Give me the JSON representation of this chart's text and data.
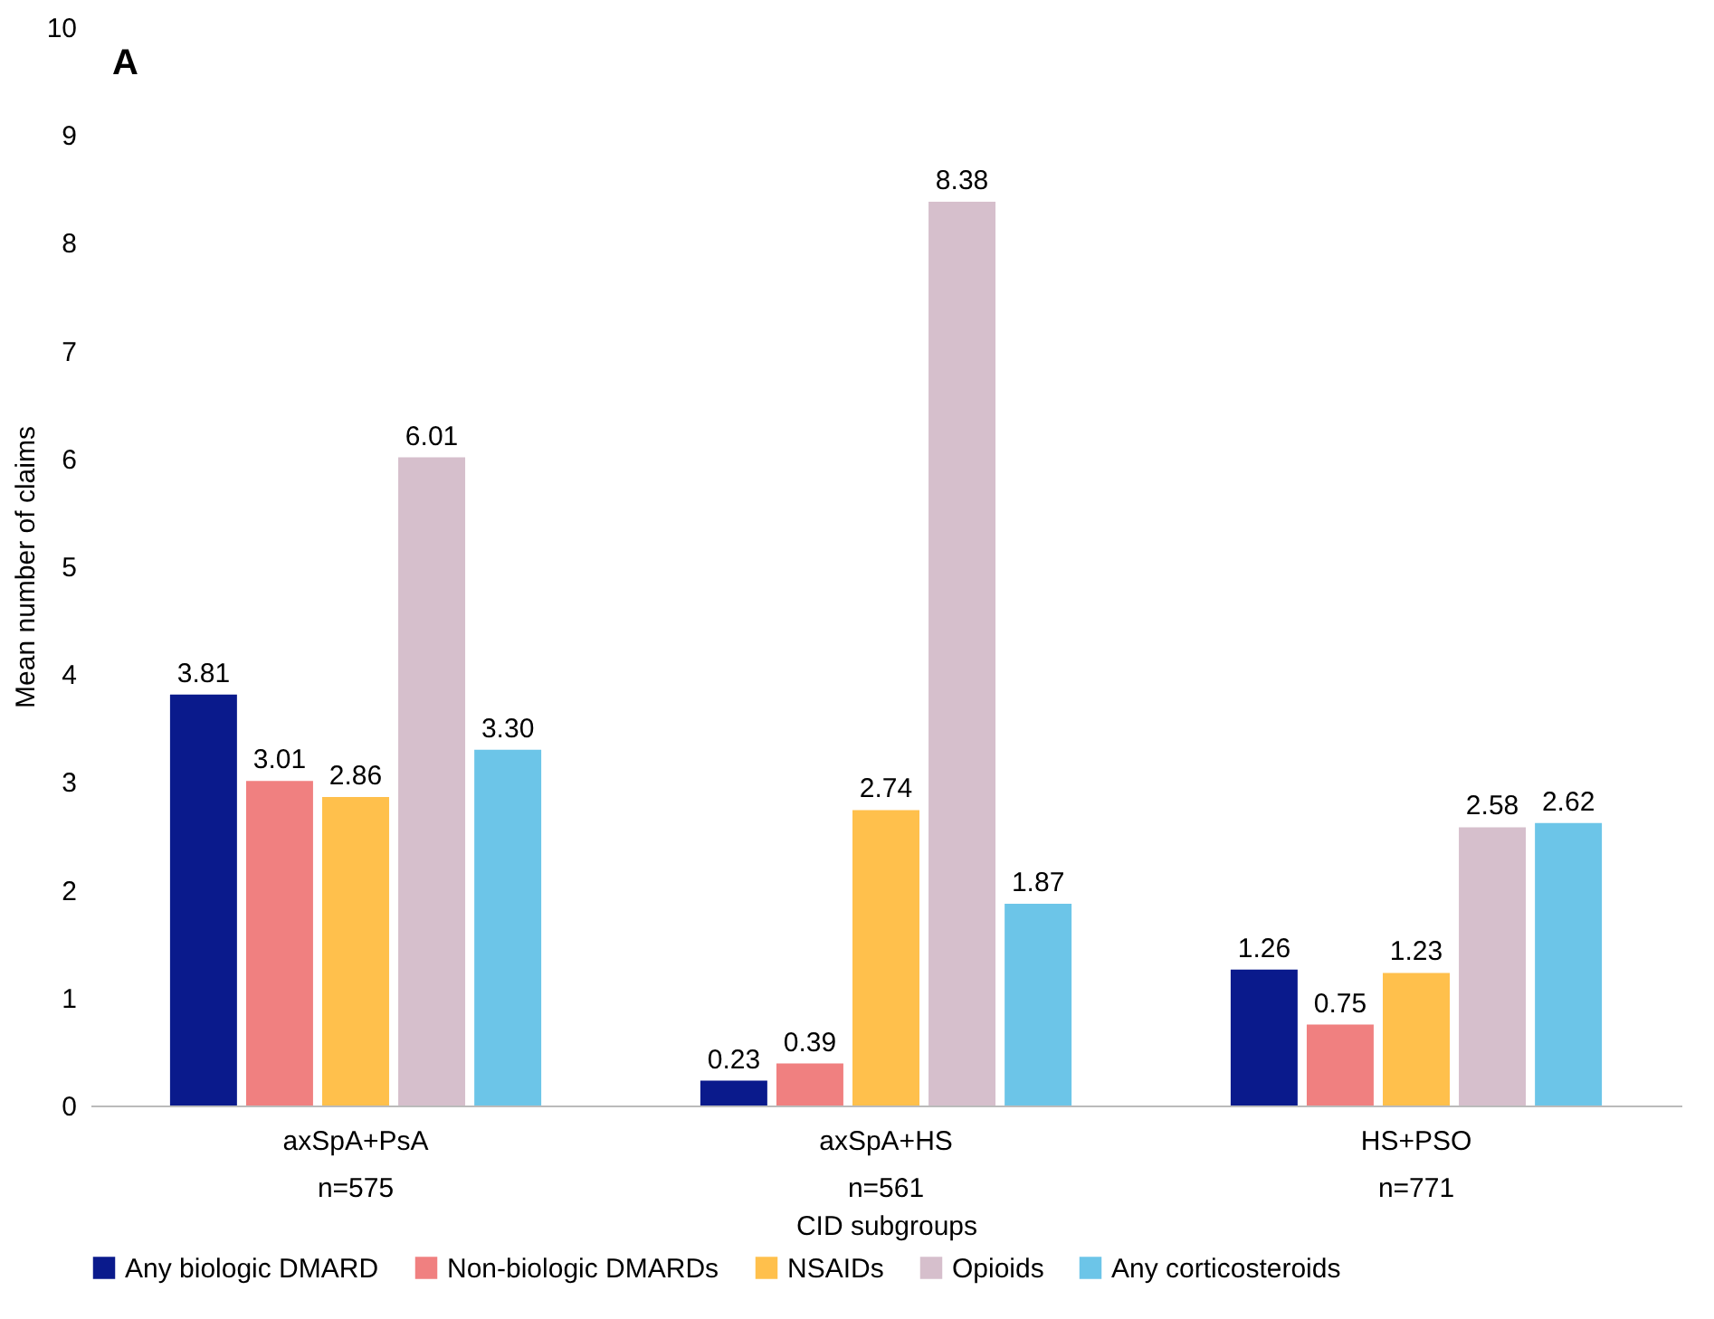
{
  "chart_data": {
    "type": "bar",
    "xlabel": "CID subgroups",
    "ylabel": "Mean number of claims",
    "categories": [
      "axSpA+PsA\nn=575",
      "axSpA+HS\nn=561",
      "HS+PSO\nn=771"
    ],
    "series": [
      {
        "name": "Any biologic DMARD",
        "color": "#0a1a8c",
        "values": [
          3.81,
          0.23,
          1.26
        ],
        "value_labels": [
          "3.81",
          "0.23",
          "1.26"
        ]
      },
      {
        "name": "Non-biologic DMARDs",
        "color": "#f08080",
        "values": [
          3.01,
          0.39,
          0.75
        ],
        "value_labels": [
          "3.01",
          "0.39",
          "0.75"
        ]
      },
      {
        "name": "NSAIDs",
        "color": "#ffc04c",
        "values": [
          2.86,
          2.74,
          1.23
        ],
        "value_labels": [
          "2.86",
          "2.74",
          "1.23"
        ]
      },
      {
        "name": "Opioids",
        "color": "#d6bfcc",
        "values": [
          6.01,
          8.38,
          2.58
        ],
        "value_labels": [
          "6.01",
          "8.38",
          "2.58"
        ]
      },
      {
        "name": "Any corticosteroids",
        "color": "#6cc5e8",
        "values": [
          3.3,
          1.87,
          2.62
        ],
        "value_labels": [
          "3.30",
          "1.87",
          "2.62"
        ]
      }
    ],
    "ylim": [
      0,
      10
    ],
    "yticks": [
      0,
      1,
      2,
      3,
      4,
      5,
      6,
      7,
      8,
      9,
      10
    ],
    "grid": false,
    "legend": "bottom",
    "annotations": [
      "A"
    ]
  }
}
